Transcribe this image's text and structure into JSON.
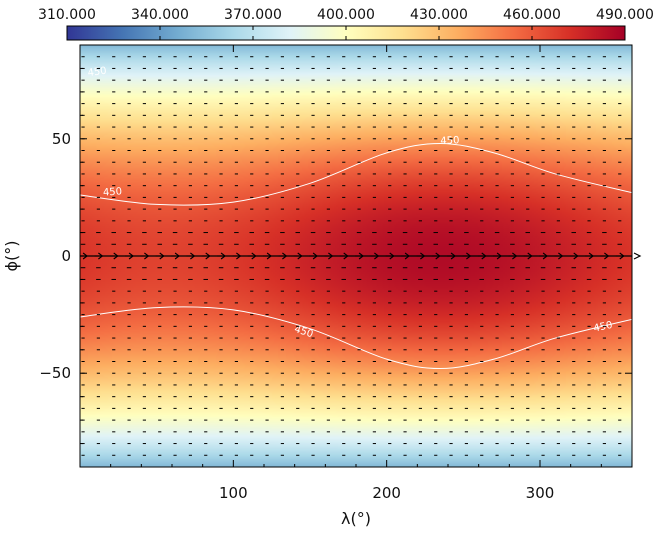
{
  "chart_data": {
    "type": "heatmap",
    "title": "",
    "xlabel": "λ(°)",
    "ylabel": "ϕ(°)",
    "xlim": [
      0,
      360
    ],
    "ylim": [
      -90,
      90
    ],
    "x_ticks": [
      100,
      200,
      300
    ],
    "x_tick_labels": [
      "100",
      "200",
      "300"
    ],
    "y_ticks": [
      50,
      0,
      -50
    ],
    "y_tick_labels": [
      "50",
      "0",
      "−50"
    ],
    "colorbar": {
      "min": 310,
      "max": 490,
      "position": "top",
      "ticks": [
        310,
        340,
        370,
        400,
        430,
        460,
        490
      ],
      "tick_labels": [
        "310.000",
        "340.000",
        "370.000",
        "400.000",
        "430.000",
        "460.000",
        "490.000"
      ],
      "colormap": "RdYlBu_r",
      "colors": [
        "#313695",
        "#4575b4",
        "#74add1",
        "#abd9e9",
        "#e0f3f8",
        "#ffffbf",
        "#fee090",
        "#fdae61",
        "#f46d43",
        "#d73027",
        "#a50026"
      ]
    },
    "field": {
      "equator_max": 480,
      "pole_min": 350,
      "hotspot_longitude": 235
    },
    "contours": [
      {
        "level": 450,
        "labels": [
          "450",
          "450",
          "450",
          "450",
          "450"
        ],
        "north": [
          [
            0,
            26
          ],
          [
            50,
            22
          ],
          [
            100,
            23
          ],
          [
            150,
            31
          ],
          [
            200,
            44
          ],
          [
            235,
            48
          ],
          [
            270,
            44
          ],
          [
            310,
            35
          ],
          [
            360,
            27
          ]
        ],
        "south": [
          [
            0,
            -26
          ],
          [
            50,
            -22
          ],
          [
            100,
            -23
          ],
          [
            150,
            -31
          ],
          [
            200,
            -44
          ],
          [
            235,
            -48
          ],
          [
            270,
            -44
          ],
          [
            310,
            -35
          ],
          [
            360,
            -27
          ]
        ]
      }
    ],
    "wind_vectors": {
      "x_spacing": 10,
      "y_spacing": 5,
      "equatorial_jet": true,
      "direction": "eastward"
    }
  }
}
